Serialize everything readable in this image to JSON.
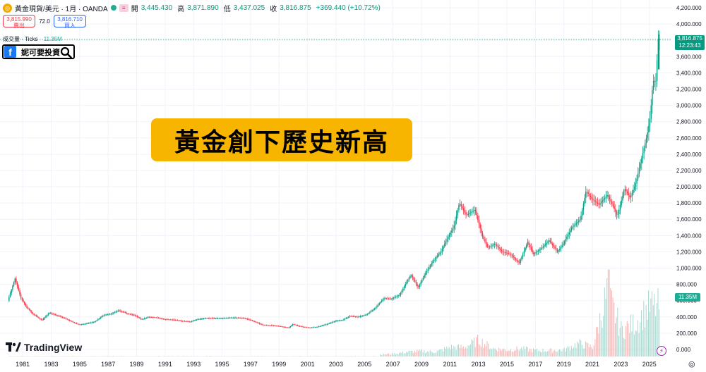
{
  "header": {
    "symbol_logo": "◎",
    "symbol": "黃金現貨/美元 · 1月 · OANDA",
    "open_label": "開",
    "open": "3,445.430",
    "high_label": "高",
    "high": "3,871.890",
    "low_label": "低",
    "low": "3,437.025",
    "close_label": "收",
    "close": "3,816.875",
    "change": "+369.440 (+10.72%)",
    "button_glyph": "≡"
  },
  "trade": {
    "sell_price": "3,815.990",
    "sell_label": "賣出",
    "spread": "72.0",
    "buy_price": "3,816.710",
    "buy_label": "買入"
  },
  "volume_legend": {
    "label": "成交量 · Ticks",
    "value": "11.35M"
  },
  "badge": {
    "fb_letter": "f",
    "name": "妮可要投資",
    "icon": "magnifier-icon"
  },
  "banner": {
    "text": "黃金創下歷史新高"
  },
  "brand": {
    "name": "TradingView"
  },
  "last_price_tag": {
    "price": "3,816.875",
    "countdown": "12:23:43"
  },
  "volume_tag": "11.35M",
  "lightning_glyph": "⚡",
  "settings_glyph": "◎",
  "colors": {
    "up": "#089981",
    "down": "#f23645",
    "banner": "#f7b500",
    "vol_up": "#a7d9cf",
    "vol_down": "#f5b5b5"
  },
  "chart_data": {
    "type": "line",
    "series": [
      {
        "values": [
          [
            1980.0,
            600
          ],
          [
            1980.5,
            870
          ],
          [
            1980.9,
            640
          ],
          [
            1981.3,
            520
          ],
          [
            1981.8,
            430
          ],
          [
            1982.4,
            360
          ],
          [
            1982.9,
            450
          ],
          [
            1983.4,
            420
          ],
          [
            1983.9,
            390
          ],
          [
            1984.5,
            340
          ],
          [
            1985.0,
            305
          ],
          [
            1985.6,
            320
          ],
          [
            1986.1,
            340
          ],
          [
            1986.7,
            420
          ],
          [
            1987.3,
            440
          ],
          [
            1987.8,
            480
          ],
          [
            1988.4,
            440
          ],
          [
            1988.9,
            420
          ],
          [
            1989.4,
            370
          ],
          [
            1989.9,
            400
          ],
          [
            1990.5,
            390
          ],
          [
            1991.0,
            370
          ],
          [
            1991.6,
            365
          ],
          [
            1992.2,
            350
          ],
          [
            1992.8,
            340
          ],
          [
            1993.3,
            370
          ],
          [
            1993.9,
            385
          ],
          [
            1994.5,
            380
          ],
          [
            1995.2,
            385
          ],
          [
            1996.0,
            390
          ],
          [
            1996.6,
            385
          ],
          [
            1997.2,
            350
          ],
          [
            1997.9,
            300
          ],
          [
            1998.5,
            295
          ],
          [
            1999.1,
            285
          ],
          [
            1999.7,
            265
          ],
          [
            2000.0,
            310
          ],
          [
            2000.6,
            280
          ],
          [
            2001.2,
            265
          ],
          [
            2001.8,
            280
          ],
          [
            2002.4,
            310
          ],
          [
            2003.0,
            350
          ],
          [
            2003.5,
            360
          ],
          [
            2004.0,
            410
          ],
          [
            2004.6,
            400
          ],
          [
            2005.2,
            430
          ],
          [
            2005.8,
            510
          ],
          [
            2006.4,
            630
          ],
          [
            2006.9,
            620
          ],
          [
            2007.5,
            670
          ],
          [
            2007.9,
            800
          ],
          [
            2008.3,
            920
          ],
          [
            2008.8,
            760
          ],
          [
            2009.3,
            930
          ],
          [
            2009.9,
            1100
          ],
          [
            2010.4,
            1200
          ],
          [
            2010.9,
            1380
          ],
          [
            2011.3,
            1500
          ],
          [
            2011.7,
            1800
          ],
          [
            2012.2,
            1650
          ],
          [
            2012.8,
            1720
          ],
          [
            2013.3,
            1400
          ],
          [
            2013.7,
            1250
          ],
          [
            2014.2,
            1300
          ],
          [
            2014.7,
            1200
          ],
          [
            2015.3,
            1170
          ],
          [
            2015.9,
            1060
          ],
          [
            2016.5,
            1320
          ],
          [
            2016.9,
            1170
          ],
          [
            2017.5,
            1250
          ],
          [
            2018.0,
            1340
          ],
          [
            2018.6,
            1200
          ],
          [
            2019.0,
            1300
          ],
          [
            2019.6,
            1500
          ],
          [
            2020.2,
            1600
          ],
          [
            2020.6,
            1950
          ],
          [
            2021.0,
            1850
          ],
          [
            2021.5,
            1780
          ],
          [
            2022.1,
            1900
          ],
          [
            2022.5,
            1760
          ],
          [
            2022.8,
            1640
          ],
          [
            2023.3,
            1980
          ],
          [
            2023.7,
            1860
          ],
          [
            2024.1,
            2050
          ],
          [
            2024.5,
            2350
          ],
          [
            2024.9,
            2650
          ],
          [
            2025.1,
            2850
          ],
          [
            2025.3,
            3300
          ],
          [
            2025.5,
            3300
          ],
          [
            2025.67,
            3816.875
          ]
        ]
      }
    ],
    "volume": [
      [
        2006,
        0.03
      ],
      [
        2007,
        0.04
      ],
      [
        2008,
        0.07
      ],
      [
        2009,
        0.08
      ],
      [
        2010,
        0.07
      ],
      [
        2011,
        0.14
      ],
      [
        2012,
        0.14
      ],
      [
        2013,
        0.25
      ],
      [
        2014,
        0.12
      ],
      [
        2015,
        0.1
      ],
      [
        2016,
        0.12
      ],
      [
        2017,
        0.09
      ],
      [
        2018,
        0.09
      ],
      [
        2019,
        0.1
      ],
      [
        2020,
        0.2
      ],
      [
        2021,
        0.14
      ],
      [
        2022,
        0.95
      ],
      [
        2023,
        0.4
      ],
      [
        2024,
        0.5
      ],
      [
        2025,
        0.75
      ]
    ],
    "x_ticks": [
      "1981",
      "1983",
      "1985",
      "1987",
      "1989",
      "1991",
      "1993",
      "1995",
      "1997",
      "1999",
      "2001",
      "2003",
      "2005",
      "2007",
      "2009",
      "2011",
      "2013",
      "2015",
      "2017",
      "2019",
      "2021",
      "2023",
      "2025"
    ],
    "y_ticks": [
      "4,200.000",
      "4,000.000",
      "3,800.000",
      "3,600.000",
      "3,400.000",
      "3,200.000",
      "3,000.000",
      "2,800.000",
      "2,600.000",
      "2,400.000",
      "2,200.000",
      "2,000.000",
      "1,800.000",
      "1,600.000",
      "1,400.000",
      "1,200.000",
      "1,000.000",
      "800.000",
      "600.000",
      "400.000",
      "200.000",
      "0.000"
    ],
    "ylim": [
      0,
      4200
    ],
    "xlim": [
      1980,
      2026.6
    ],
    "grid": true
  }
}
